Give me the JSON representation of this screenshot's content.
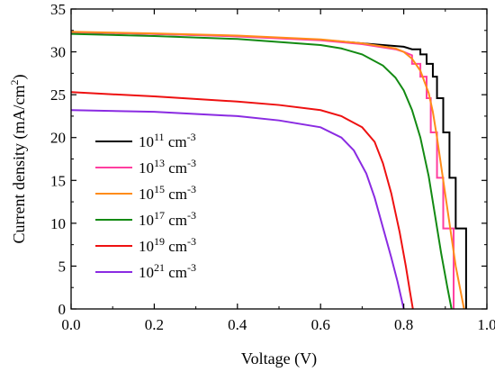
{
  "chart_data": {
    "type": "line",
    "xlabel": "Voltage (V)",
    "ylabel_main": "Current density (mA/cm",
    "ylabel_sup": "2",
    "ylabel_end": ")",
    "xlim": [
      0.0,
      1.0
    ],
    "ylim": [
      0,
      35
    ],
    "xticks": [
      "0.0",
      "0.2",
      "0.4",
      "0.6",
      "0.8",
      "1.0"
    ],
    "yticks": [
      "0",
      "5",
      "10",
      "15",
      "20",
      "25",
      "30",
      "35"
    ],
    "legend_position": "left-middle",
    "grid": false,
    "series": [
      {
        "base": "10",
        "exp": "11",
        "unit": " cm",
        "unit_exp": "-3",
        "color": "#000000",
        "points": [
          [
            0.0,
            32.3
          ],
          [
            0.2,
            32.1
          ],
          [
            0.4,
            31.85
          ],
          [
            0.6,
            31.4
          ],
          [
            0.7,
            31.0
          ],
          [
            0.8,
            30.6
          ],
          [
            0.82,
            30.3
          ],
          [
            0.84,
            30.3
          ],
          [
            0.84,
            29.7
          ],
          [
            0.855,
            29.7
          ],
          [
            0.855,
            28.6
          ],
          [
            0.87,
            28.6
          ],
          [
            0.87,
            27.1
          ],
          [
            0.88,
            27.1
          ],
          [
            0.88,
            24.6
          ],
          [
            0.895,
            24.6
          ],
          [
            0.895,
            20.6
          ],
          [
            0.91,
            20.6
          ],
          [
            0.91,
            15.3
          ],
          [
            0.925,
            15.3
          ],
          [
            0.925,
            9.4
          ],
          [
            0.95,
            9.4
          ],
          [
            0.95,
            0.0
          ]
        ]
      },
      {
        "base": "10",
        "exp": "13",
        "unit": " cm",
        "unit_exp": "-3",
        "color": "#ff3ea0",
        "points": [
          [
            0.0,
            32.3
          ],
          [
            0.2,
            32.1
          ],
          [
            0.4,
            31.8
          ],
          [
            0.6,
            31.35
          ],
          [
            0.7,
            30.9
          ],
          [
            0.78,
            30.3
          ],
          [
            0.8,
            30.0
          ],
          [
            0.82,
            29.6
          ],
          [
            0.82,
            28.6
          ],
          [
            0.84,
            28.6
          ],
          [
            0.84,
            27.1
          ],
          [
            0.855,
            27.1
          ],
          [
            0.855,
            24.6
          ],
          [
            0.865,
            24.6
          ],
          [
            0.865,
            20.6
          ],
          [
            0.88,
            20.6
          ],
          [
            0.88,
            15.3
          ],
          [
            0.895,
            15.3
          ],
          [
            0.895,
            9.4
          ],
          [
            0.92,
            9.4
          ],
          [
            0.92,
            0.0
          ]
        ]
      },
      {
        "base": "10",
        "exp": "15",
        "unit": " cm",
        "unit_exp": "-3",
        "color": "#ff8c1a",
        "points": [
          [
            0.0,
            32.35
          ],
          [
            0.2,
            32.15
          ],
          [
            0.4,
            31.9
          ],
          [
            0.6,
            31.45
          ],
          [
            0.7,
            31.0
          ],
          [
            0.78,
            30.4
          ],
          [
            0.8,
            30.0
          ],
          [
            0.82,
            29.2
          ],
          [
            0.84,
            27.8
          ],
          [
            0.86,
            25.2
          ],
          [
            0.87,
            23.0
          ],
          [
            0.88,
            20.0
          ],
          [
            0.895,
            15.0
          ],
          [
            0.91,
            10.0
          ],
          [
            0.925,
            5.0
          ],
          [
            0.945,
            0.0
          ]
        ]
      },
      {
        "base": "10",
        "exp": "17",
        "unit": " cm",
        "unit_exp": "-3",
        "color": "#138a13",
        "points": [
          [
            0.0,
            32.1
          ],
          [
            0.2,
            31.85
          ],
          [
            0.4,
            31.5
          ],
          [
            0.6,
            30.8
          ],
          [
            0.65,
            30.4
          ],
          [
            0.7,
            29.7
          ],
          [
            0.75,
            28.4
          ],
          [
            0.78,
            27.0
          ],
          [
            0.8,
            25.5
          ],
          [
            0.82,
            23.2
          ],
          [
            0.84,
            20.0
          ],
          [
            0.86,
            15.5
          ],
          [
            0.875,
            11.0
          ],
          [
            0.89,
            6.5
          ],
          [
            0.905,
            2.5
          ],
          [
            0.915,
            0.0
          ]
        ]
      },
      {
        "base": "10",
        "exp": "19",
        "unit": " cm",
        "unit_exp": "-3",
        "color": "#ee1111",
        "points": [
          [
            0.0,
            25.3
          ],
          [
            0.2,
            24.8
          ],
          [
            0.4,
            24.2
          ],
          [
            0.5,
            23.8
          ],
          [
            0.6,
            23.2
          ],
          [
            0.65,
            22.5
          ],
          [
            0.7,
            21.2
          ],
          [
            0.73,
            19.5
          ],
          [
            0.75,
            17.0
          ],
          [
            0.77,
            13.5
          ],
          [
            0.79,
            9.0
          ],
          [
            0.805,
            5.0
          ],
          [
            0.815,
            2.0
          ],
          [
            0.822,
            0.0
          ]
        ]
      },
      {
        "base": "10",
        "exp": "21",
        "unit": " cm",
        "unit_exp": "-3",
        "color": "#8a2be2",
        "points": [
          [
            0.0,
            23.2
          ],
          [
            0.2,
            23.0
          ],
          [
            0.4,
            22.5
          ],
          [
            0.5,
            22.0
          ],
          [
            0.6,
            21.2
          ],
          [
            0.65,
            20.0
          ],
          [
            0.68,
            18.5
          ],
          [
            0.71,
            15.8
          ],
          [
            0.73,
            13.0
          ],
          [
            0.75,
            9.5
          ],
          [
            0.77,
            6.0
          ],
          [
            0.785,
            3.2
          ],
          [
            0.8,
            0.0
          ]
        ]
      }
    ]
  }
}
